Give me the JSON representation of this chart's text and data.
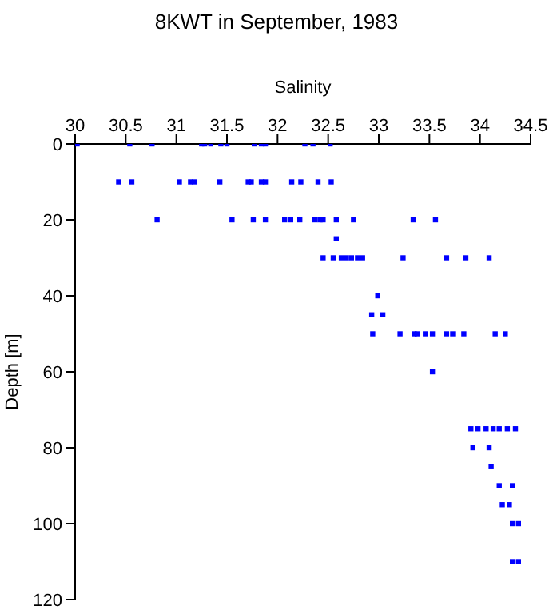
{
  "chart_data": {
    "type": "scatter",
    "title": "8KWT in September, 1983",
    "xlabel": "Salinity",
    "ylabel": "Depth [m]",
    "marker": "square",
    "legend": false,
    "grid": false,
    "xlim": [
      30,
      34.5
    ],
    "xticks": [
      30,
      30.5,
      31,
      31.5,
      32,
      32.5,
      33,
      33.5,
      34,
      34.5
    ],
    "ylim": [
      120,
      0
    ],
    "yticks": [
      0,
      20,
      40,
      60,
      80,
      100,
      120
    ],
    "series": [
      {
        "color": "#0000ff",
        "x": [
          30.02,
          30.54,
          30.76,
          31.25,
          31.28,
          31.34,
          31.44,
          31.5,
          31.77,
          31.84,
          31.88,
          32.27,
          32.35,
          32.52,
          30.43,
          30.56,
          31.03,
          31.14,
          31.18,
          31.43,
          31.71,
          31.74,
          31.84,
          31.88,
          32.14,
          32.23,
          32.4,
          32.53,
          30.81,
          31.55,
          31.76,
          31.88,
          32.07,
          32.13,
          32.22,
          32.37,
          32.42,
          32.45,
          32.58,
          32.75,
          33.34,
          33.56,
          32.58,
          32.45,
          32.55,
          32.63,
          32.68,
          32.73,
          32.79,
          32.84,
          33.24,
          33.67,
          33.86,
          34.09,
          32.99,
          32.93,
          33.04,
          32.94,
          33.21,
          33.35,
          33.38,
          33.46,
          33.53,
          33.67,
          33.73,
          33.84,
          34.15,
          34.25,
          33.53,
          33.91,
          33.98,
          34.06,
          34.13,
          34.19,
          34.27,
          34.35,
          33.93,
          34.09,
          34.11,
          34.19,
          34.32,
          34.22,
          34.29,
          34.32,
          34.38,
          34.32,
          34.38
        ],
        "values": [
          0,
          0,
          0,
          0,
          0,
          0,
          0,
          0,
          0,
          0,
          0,
          0,
          0,
          0,
          10,
          10,
          10,
          10,
          10,
          10,
          10,
          10,
          10,
          10,
          10,
          10,
          10,
          10,
          20,
          20,
          20,
          20,
          20,
          20,
          20,
          20,
          20,
          20,
          20,
          20,
          20,
          20,
          25,
          30,
          30,
          30,
          30,
          30,
          30,
          30,
          30,
          30,
          30,
          30,
          40,
          45,
          45,
          50,
          50,
          50,
          50,
          50,
          50,
          50,
          50,
          50,
          50,
          50,
          60,
          75,
          75,
          75,
          75,
          75,
          75,
          75,
          80,
          80,
          85,
          90,
          90,
          95,
          95,
          100,
          100,
          110,
          110
        ]
      }
    ]
  }
}
